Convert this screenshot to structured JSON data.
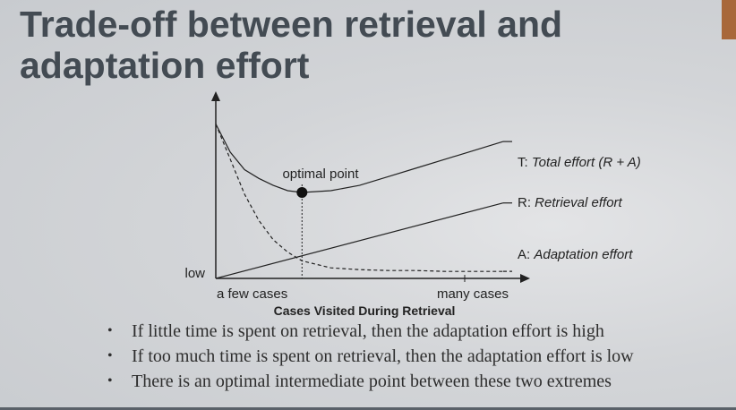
{
  "slide": {
    "title_line1": "Trade-off between retrieval and",
    "title_line2": "adaptation effort"
  },
  "colors": {
    "title": "#434b53",
    "accent": "#a8683a",
    "ink": "#222222"
  },
  "chart_data": {
    "type": "line",
    "xlabel": "Cases Visited During Retrieval",
    "ylabel": "",
    "x_ticks": [
      "a few cases",
      "many cases"
    ],
    "y_ticks": [
      "low"
    ],
    "annotations": [
      {
        "text": "optimal point",
        "x": 0.3
      }
    ],
    "series": [
      {
        "name": "Total effort (R + A)",
        "prefix": "T:",
        "style": "solid",
        "x": [
          0,
          0.05,
          0.1,
          0.15,
          0.2,
          0.25,
          0.3,
          0.4,
          0.5,
          0.6,
          0.7,
          0.8,
          0.9,
          1.0
        ],
        "y": [
          0.88,
          0.72,
          0.62,
          0.57,
          0.53,
          0.5,
          0.49,
          0.5,
          0.53,
          0.58,
          0.63,
          0.68,
          0.73,
          0.78
        ]
      },
      {
        "name": "Retrieval effort",
        "prefix": "R:",
        "style": "solid",
        "x": [
          0,
          1.0
        ],
        "y": [
          0.0,
          0.43
        ]
      },
      {
        "name": "Adaptation effort",
        "prefix": "A:",
        "style": "dashed",
        "x": [
          0,
          0.05,
          0.1,
          0.15,
          0.2,
          0.25,
          0.3,
          0.4,
          0.5,
          0.6,
          0.7,
          0.8,
          0.9,
          1.0
        ],
        "y": [
          0.88,
          0.68,
          0.48,
          0.33,
          0.22,
          0.15,
          0.1,
          0.06,
          0.05,
          0.045,
          0.045,
          0.04,
          0.04,
          0.04
        ]
      }
    ]
  },
  "bullets": [
    {
      "text": "If little time is spent on retrieval, then the adaptation effort is high"
    },
    {
      "text": "If too much time is spent on retrieval, then the adaptation effort is low"
    },
    {
      "text": "There is an optimal intermediate point between these two extremes"
    }
  ]
}
